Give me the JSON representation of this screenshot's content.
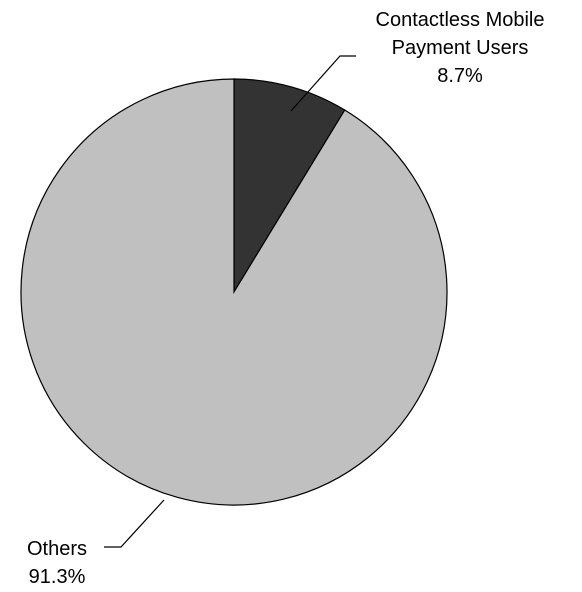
{
  "chart_data": {
    "type": "pie",
    "slices": [
      {
        "label_lines": [
          "Contactless Mobile",
          "Payment Users"
        ],
        "value": 8.7,
        "value_label": "8.7%",
        "color": "#333333"
      },
      {
        "label_lines": [
          "Others"
        ],
        "value": 91.3,
        "value_label": "91.3%",
        "color": "#c0c0c0"
      }
    ],
    "start_angle_deg": 0,
    "direction": "clockwise",
    "outline_color": "#000000"
  }
}
